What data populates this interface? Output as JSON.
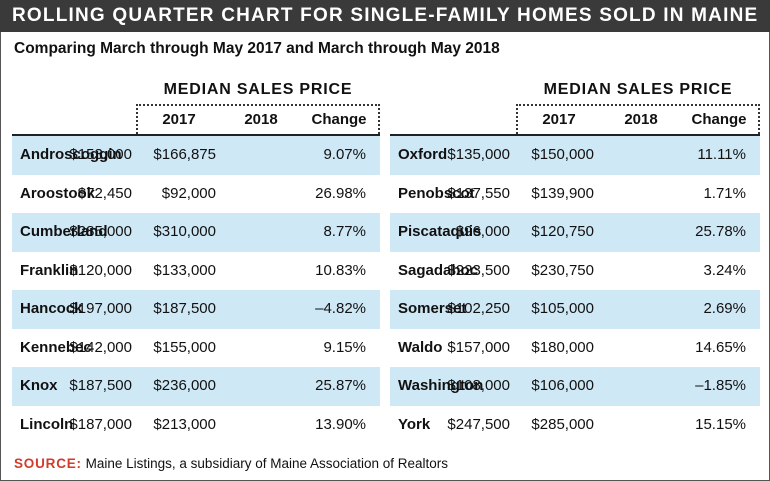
{
  "title": "ROLLING QUARTER CHART FOR SINGLE-FAMILY HOMES SOLD IN MAINE",
  "subtitle": "Comparing March through May 2017 and March through May 2018",
  "group_title": "MEDIAN SALES PRICE",
  "columns": [
    "2017",
    "2018",
    "Change"
  ],
  "source_label": "SOURCE:",
  "source_text": "Maine Listings, a subsidiary of Maine Association of Realtors",
  "colors": {
    "title_bg": "#3a3a3a",
    "row_shade": "#cfe8f6",
    "source_label": "#d23a2a"
  },
  "chart_data": {
    "type": "table",
    "title": "ROLLING QUARTER CHART FOR SINGLE-FAMILY HOMES SOLD IN MAINE",
    "subtitle": "Comparing March through May 2017 and March through May 2018",
    "columns": [
      "2017",
      "2018",
      "Change"
    ],
    "tables": [
      {
        "rows": [
          {
            "county": "Androscoggin",
            "2017": "$153,000",
            "2018": "$166,875",
            "change": "9.07%"
          },
          {
            "county": "Aroostook",
            "2017": "$72,450",
            "2018": "$92,000",
            "change": "26.98%"
          },
          {
            "county": "Cumberland",
            "2017": "$285,000",
            "2018": "$310,000",
            "change": "8.77%"
          },
          {
            "county": "Franklin",
            "2017": "$120,000",
            "2018": "$133,000",
            "change": "10.83%"
          },
          {
            "county": "Hancock",
            "2017": "$197,000",
            "2018": "$187,500",
            "change": "–4.82%"
          },
          {
            "county": "Kennebec",
            "2017": "$142,000",
            "2018": "$155,000",
            "change": "9.15%"
          },
          {
            "county": "Knox",
            "2017": "$187,500",
            "2018": "$236,000",
            "change": "25.87%"
          },
          {
            "county": "Lincoln",
            "2017": "$187,000",
            "2018": "$213,000",
            "change": "13.90%"
          }
        ]
      },
      {
        "rows": [
          {
            "county": "Oxford",
            "2017": "$135,000",
            "2018": "$150,000",
            "change": "11.11%"
          },
          {
            "county": "Penobscot",
            "2017": "$137,550",
            "2018": "$139,900",
            "change": "1.71%"
          },
          {
            "county": "Piscataquis",
            "2017": "$96,000",
            "2018": "$120,750",
            "change": "25.78%"
          },
          {
            "county": "Sagadahoc",
            "2017": "$223,500",
            "2018": "$230,750",
            "change": "3.24%"
          },
          {
            "county": "Somerset",
            "2017": "$102,250",
            "2018": "$105,000",
            "change": "2.69%"
          },
          {
            "county": "Waldo",
            "2017": "$157,000",
            "2018": "$180,000",
            "change": "14.65%"
          },
          {
            "county": "Washington",
            "2017": "$108,000",
            "2018": "$106,000",
            "change": "–1.85%"
          },
          {
            "county": "York",
            "2017": "$247,500",
            "2018": "$285,000",
            "change": "15.15%"
          }
        ]
      }
    ]
  }
}
